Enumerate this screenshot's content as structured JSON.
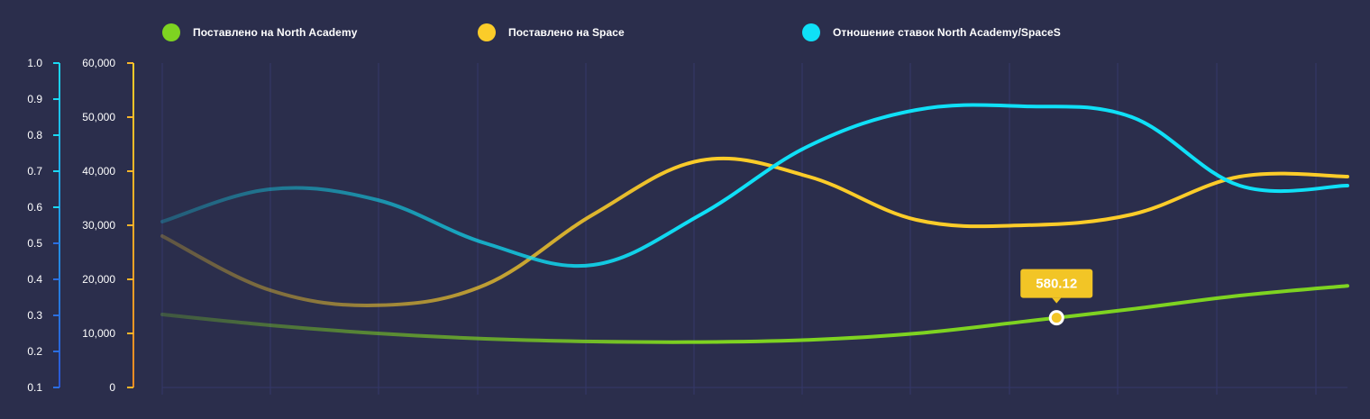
{
  "legend": [
    {
      "label": "Поставлено на North Academy",
      "color": "#7ed321"
    },
    {
      "label": "Поставлено на Space",
      "color": "#fbcc29"
    },
    {
      "label": "Отношение ставок North Academy/SpaceS",
      "color": "#0fe0f7"
    }
  ],
  "chart_data": {
    "type": "line",
    "x": [
      0,
      1,
      2,
      3,
      4,
      5,
      6,
      7,
      8,
      9,
      10,
      11
    ],
    "left_axis": {
      "ticks": [
        "1.0",
        "0.9",
        "0.8",
        "0.7",
        "0.6",
        "0.5",
        "0.4",
        "0.3",
        "0.2",
        "0.1"
      ],
      "ylim": [
        0.1,
        1.0
      ]
    },
    "right_axis": {
      "ticks": [
        "60,000",
        "50,000",
        "40,000",
        "30,000",
        "20,000",
        "10,000",
        "0"
      ],
      "ylim": [
        0,
        60000
      ]
    },
    "series": [
      {
        "name": "Поставлено на North Academy",
        "color": "#7ed321",
        "axis": "right_axis",
        "values": [
          13500,
          11500,
          10000,
          9000,
          8500,
          8400,
          8800,
          10000,
          12200,
          14500,
          17000,
          18800
        ]
      },
      {
        "name": "Поставлено на Space",
        "color": "#fbcc29",
        "axis": "right_axis",
        "values": [
          28000,
          18000,
          15200,
          19000,
          32000,
          42000,
          39000,
          31000,
          30000,
          32000,
          39000,
          39000
        ]
      },
      {
        "name": "Отношение ставок North Academy/SpaceS",
        "color": "#0fe0f7",
        "axis": "left_axis",
        "values": [
          0.56,
          0.65,
          0.62,
          0.5,
          0.44,
          0.58,
          0.77,
          0.87,
          0.88,
          0.85,
          0.66,
          0.66
        ]
      }
    ],
    "tooltip": {
      "value": "580.12",
      "series_index": 0,
      "x_value": 8.3
    },
    "grid": true
  }
}
